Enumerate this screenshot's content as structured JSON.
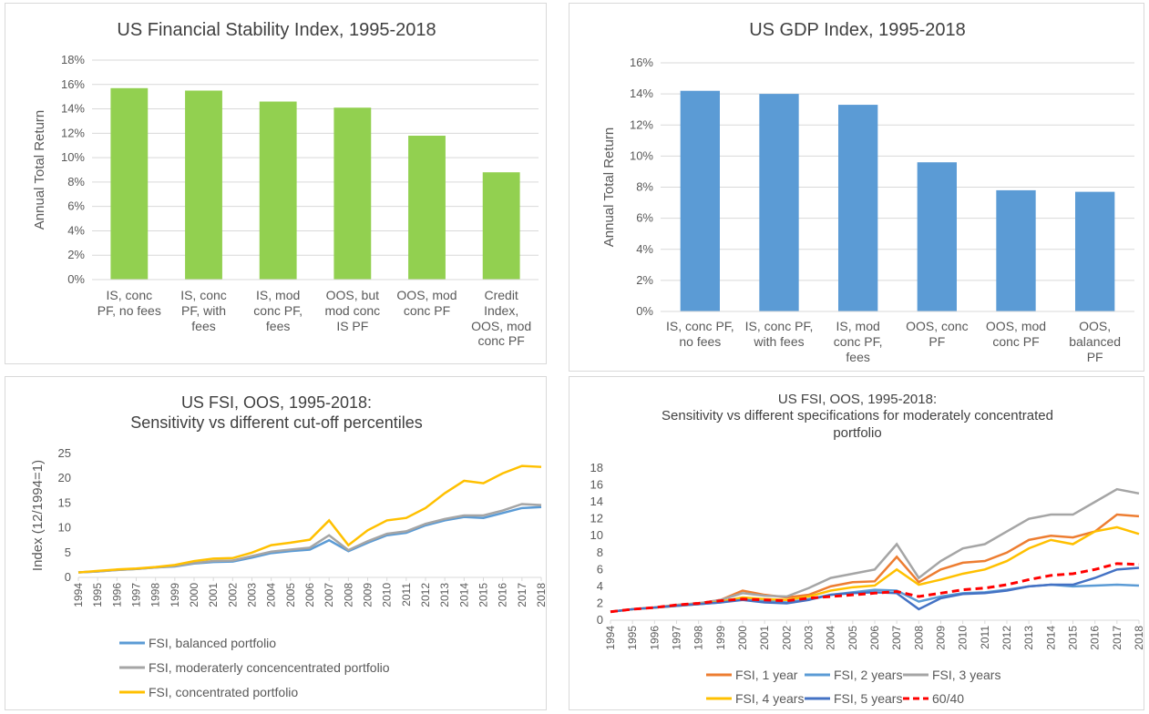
{
  "chart_data": [
    {
      "type": "bar",
      "title": "US Financial Stability Index, 1995-2018",
      "y_label": "Annual Total Return",
      "categories": [
        "IS, conc PF, no fees",
        "IS, conc PF, with fees",
        "IS, mod conc PF, fees",
        "OOS, but mod conc IS PF",
        "OOS, mod conc PF",
        "Credit Index, OOS, mod conc PF"
      ],
      "values": [
        15.7,
        15.5,
        14.6,
        14.1,
        11.8,
        8.8
      ],
      "color": "#92d050",
      "grid": true,
      "ylim": [
        0,
        18
      ],
      "yticks": [
        {
          "value": 0,
          "label": "0%"
        },
        {
          "value": 2,
          "label": "2%"
        },
        {
          "value": 4,
          "label": "4%"
        },
        {
          "value": 6,
          "label": "6%"
        },
        {
          "value": 8,
          "label": "8%"
        },
        {
          "value": 10,
          "label": "10%"
        },
        {
          "value": 12,
          "label": "12%"
        },
        {
          "value": 14,
          "label": "14%"
        },
        {
          "value": 16,
          "label": "16%"
        },
        {
          "value": 18,
          "label": "18%"
        }
      ]
    },
    {
      "type": "bar",
      "title": "US GDP Index, 1995-2018",
      "y_label": "Annual Total Return",
      "categories": [
        "IS, conc PF, no fees",
        "IS, conc PF, with fees",
        "IS, mod conc PF, fees",
        "OOS, conc PF",
        "OOS, mod conc PF",
        "OOS, balanced PF"
      ],
      "values": [
        14.2,
        14.0,
        13.3,
        9.6,
        7.8,
        7.7
      ],
      "color": "#5b9bd5",
      "grid": true,
      "ylim": [
        0,
        16
      ],
      "yticks": [
        {
          "value": 0,
          "label": "0%"
        },
        {
          "value": 2,
          "label": "2%"
        },
        {
          "value": 4,
          "label": "4%"
        },
        {
          "value": 6,
          "label": "6%"
        },
        {
          "value": 8,
          "label": "8%"
        },
        {
          "value": 10,
          "label": "10%"
        },
        {
          "value": 12,
          "label": "12%"
        },
        {
          "value": 14,
          "label": "14%"
        },
        {
          "value": 16,
          "label": "16%"
        }
      ]
    },
    {
      "type": "line",
      "title": "US FSI, OOS, 1995-2018:",
      "subtitle": "Sensitivity vs different cut-off percentiles",
      "y_label": "Index (12/1994=1)",
      "x": [
        1994,
        1995,
        1996,
        1997,
        1998,
        1999,
        2000,
        2001,
        2002,
        2003,
        2004,
        2005,
        2006,
        2007,
        2008,
        2009,
        2010,
        2011,
        2012,
        2013,
        2014,
        2015,
        2016,
        2017,
        2018
      ],
      "xlim": [
        1994,
        2018
      ],
      "xticks": [
        1994,
        1995,
        1996,
        1997,
        1998,
        1999,
        2000,
        2001,
        2002,
        2003,
        2004,
        2005,
        2006,
        2007,
        2008,
        2009,
        2010,
        2011,
        2012,
        2013,
        2014,
        2015,
        2016,
        2017,
        2018
      ],
      "ylim": [
        0,
        25
      ],
      "yticks": [
        0,
        5,
        10,
        15,
        20,
        25
      ],
      "grid": false,
      "legend": "bottom",
      "series": [
        {
          "name": "FSI, balanced portfolio",
          "color": "#5b9bd5",
          "values": [
            1,
            1.2,
            1.5,
            1.7,
            2.0,
            2.2,
            2.8,
            3.1,
            3.2,
            4.0,
            4.9,
            5.3,
            5.6,
            7.5,
            5.3,
            7.0,
            8.5,
            9.0,
            10.5,
            11.5,
            12.2,
            12.0,
            13.0,
            14.0,
            14.2
          ]
        },
        {
          "name": "FSI, moderaterly concencentrated portfolio",
          "color": "#a5a5a5",
          "values": [
            1,
            1.2,
            1.5,
            1.7,
            2.0,
            2.3,
            2.9,
            3.3,
            3.4,
            4.3,
            5.2,
            5.6,
            6.0,
            8.5,
            5.5,
            7.3,
            8.8,
            9.3,
            10.8,
            11.8,
            12.5,
            12.5,
            13.5,
            14.8,
            14.6
          ]
        },
        {
          "name": "FSI, concentrated portfolio",
          "color": "#ffc000",
          "values": [
            1,
            1.3,
            1.6,
            1.8,
            2.1,
            2.5,
            3.3,
            3.8,
            3.9,
            5.0,
            6.5,
            7.0,
            7.6,
            11.5,
            6.5,
            9.5,
            11.5,
            12.0,
            14.0,
            17.0,
            19.5,
            19.0,
            21.0,
            22.5,
            22.3
          ]
        }
      ]
    },
    {
      "type": "line",
      "title": "US FSI, OOS, 1995-2018:",
      "subtitle": "Sensitivity vs different specifications for moderately concentrated portfolio",
      "x": [
        1994,
        1995,
        1996,
        1997,
        1998,
        1999,
        2000,
        2001,
        2002,
        2003,
        2004,
        2005,
        2006,
        2007,
        2008,
        2009,
        2010,
        2011,
        2012,
        2013,
        2014,
        2015,
        2016,
        2017,
        2018
      ],
      "xlim": [
        1994,
        2018
      ],
      "xticks": [
        1994,
        1995,
        1996,
        1997,
        1998,
        1999,
        2000,
        2001,
        2002,
        2003,
        2004,
        2005,
        2006,
        2007,
        2008,
        2009,
        2010,
        2011,
        2012,
        2013,
        2014,
        2015,
        2016,
        2017,
        2018
      ],
      "ylim": [
        0,
        18
      ],
      "yticks": [
        0,
        2,
        4,
        6,
        8,
        10,
        12,
        14,
        16,
        18
      ],
      "grid": false,
      "legend": "bottom",
      "series": [
        {
          "name": "FSI, 1 year",
          "color": "#ed7d31",
          "values": [
            1,
            1.3,
            1.5,
            1.8,
            2.0,
            2.4,
            3.5,
            3.0,
            2.7,
            3.0,
            4.0,
            4.5,
            4.6,
            7.5,
            4.5,
            6.0,
            6.8,
            7.0,
            8.0,
            9.5,
            10.0,
            9.8,
            10.5,
            12.5,
            12.3
          ]
        },
        {
          "name": "FSI, 2 years",
          "color": "#5b9bd5",
          "values": [
            1,
            1.3,
            1.5,
            1.7,
            1.9,
            2.1,
            2.6,
            2.3,
            2.1,
            2.5,
            3.0,
            3.3,
            3.6,
            3.5,
            2.2,
            2.8,
            3.2,
            3.3,
            3.6,
            4.0,
            4.2,
            4.0,
            4.1,
            4.2,
            4.1
          ]
        },
        {
          "name": "FSI, 3 years",
          "color": "#a5a5a5",
          "values": [
            1,
            1.3,
            1.5,
            1.8,
            2.0,
            2.4,
            3.2,
            2.9,
            2.8,
            3.8,
            5.0,
            5.5,
            6.0,
            9.0,
            5.0,
            7.0,
            8.5,
            9.0,
            10.5,
            12.0,
            12.5,
            12.5,
            14.0,
            15.5,
            15.0
          ]
        },
        {
          "name": "FSI, 4 years",
          "color": "#ffc000",
          "values": [
            1,
            1.3,
            1.5,
            1.7,
            1.9,
            2.2,
            2.7,
            2.5,
            2.4,
            2.8,
            3.5,
            3.9,
            4.1,
            6.0,
            4.2,
            4.8,
            5.5,
            6.0,
            7.0,
            8.5,
            9.5,
            9.0,
            10.5,
            11.0,
            10.2
          ]
        },
        {
          "name": "FSI, 5 years",
          "color": "#4472c4",
          "values": [
            1,
            1.3,
            1.5,
            1.7,
            1.9,
            2.1,
            2.4,
            2.1,
            2.0,
            2.4,
            3.0,
            3.2,
            3.3,
            3.2,
            1.3,
            2.6,
            3.1,
            3.2,
            3.5,
            4.0,
            4.2,
            4.2,
            5.0,
            6.0,
            6.2
          ]
        },
        {
          "name": "60/40",
          "color": "#ff0000",
          "line_style": "dashed",
          "values": [
            1,
            1.3,
            1.5,
            1.8,
            2.0,
            2.3,
            2.5,
            2.4,
            2.3,
            2.6,
            2.8,
            3.0,
            3.2,
            3.4,
            2.8,
            3.2,
            3.6,
            3.8,
            4.2,
            4.8,
            5.3,
            5.5,
            6.0,
            6.7,
            6.6
          ]
        }
      ]
    }
  ]
}
